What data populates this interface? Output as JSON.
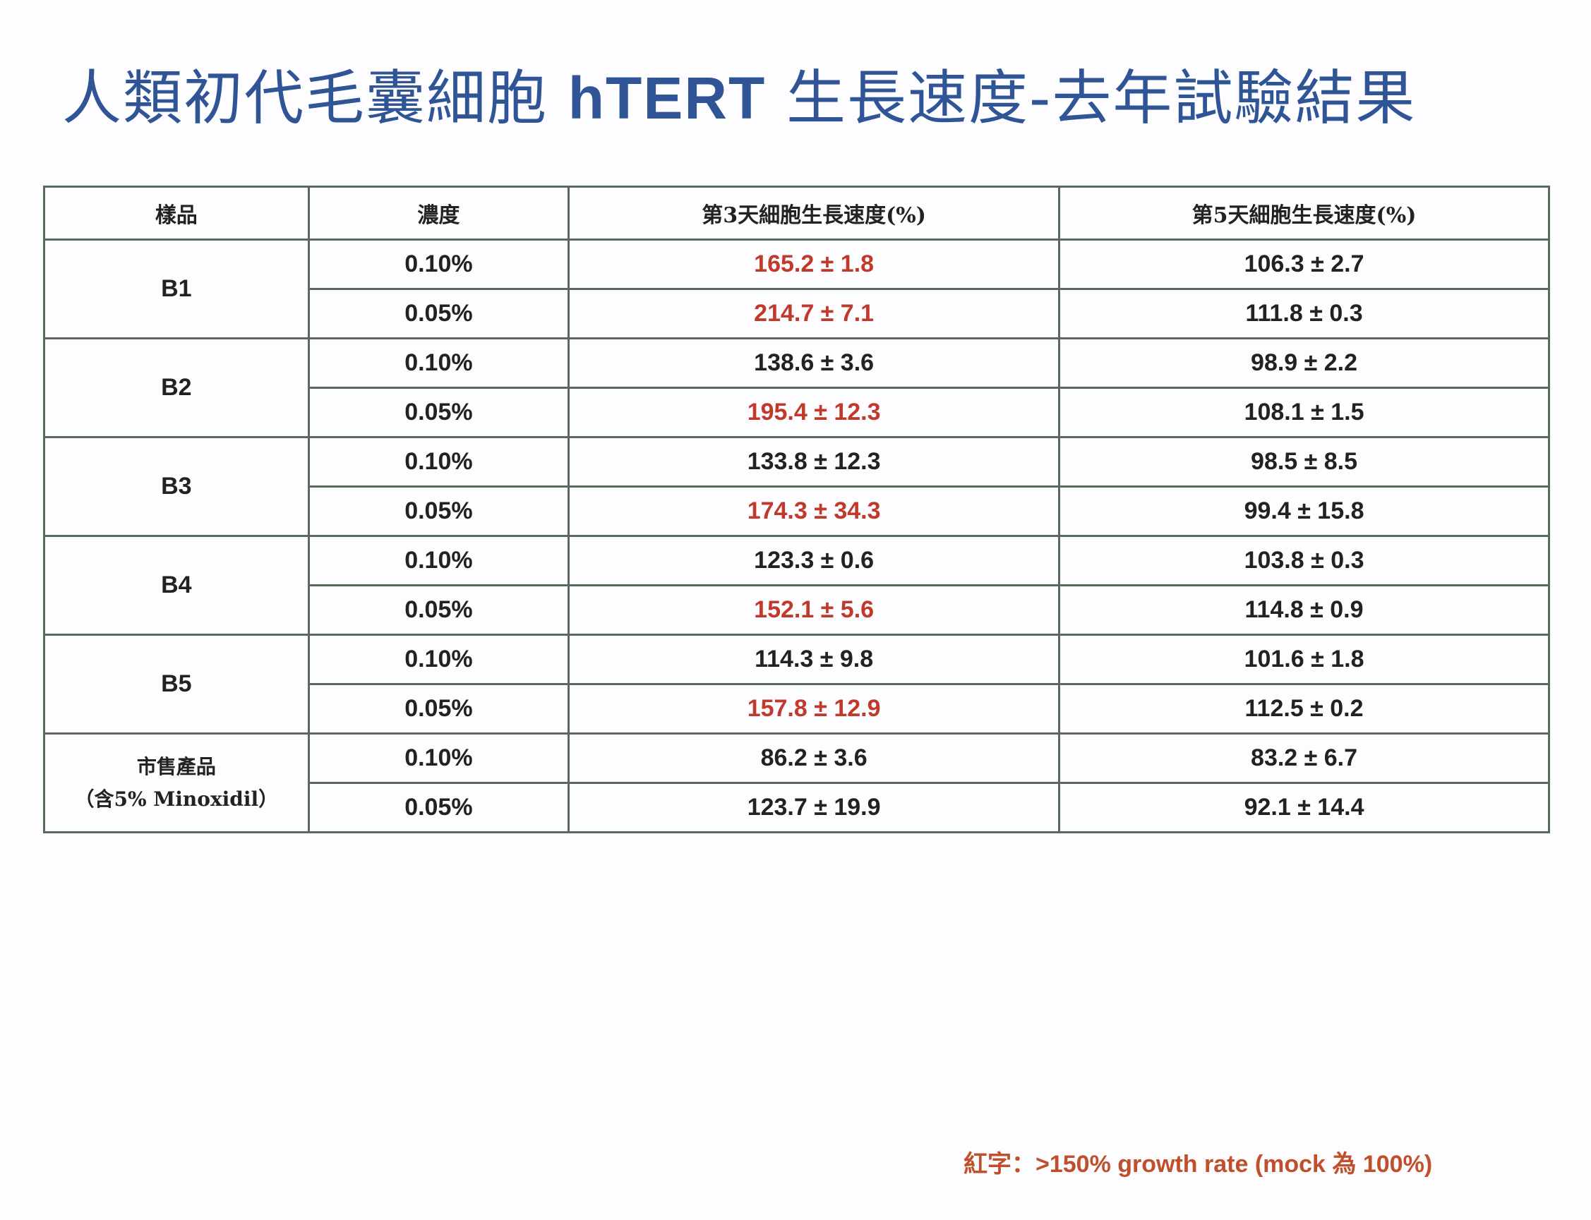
{
  "title": {
    "prefix": "人類初代毛囊細胞 ",
    "bold": "hTERT",
    "suffix": " 生長速度-去年試驗結果"
  },
  "table": {
    "headers": [
      "樣品",
      "濃度",
      "第3天細胞生長速度(%)",
      "第5天細胞生長速度(%)"
    ],
    "groups": [
      {
        "sample": "B1",
        "rows": [
          {
            "conc": "0.10%",
            "day3": "165.2 ± 1.8",
            "day3_red": true,
            "day5": "106.3 ± 2.7"
          },
          {
            "conc": "0.05%",
            "day3": "214.7 ± 7.1",
            "day3_red": true,
            "day5": "111.8 ± 0.3"
          }
        ]
      },
      {
        "sample": "B2",
        "rows": [
          {
            "conc": "0.10%",
            "day3": "138.6 ± 3.6",
            "day3_red": false,
            "day5": "98.9 ± 2.2"
          },
          {
            "conc": "0.05%",
            "day3": "195.4 ± 12.3",
            "day3_red": true,
            "day5": "108.1 ± 1.5"
          }
        ]
      },
      {
        "sample": "B3",
        "rows": [
          {
            "conc": "0.10%",
            "day3": "133.8 ± 12.3",
            "day3_red": false,
            "day5": "98.5 ± 8.5"
          },
          {
            "conc": "0.05%",
            "day3": "174.3 ± 34.3",
            "day3_red": true,
            "day5": "99.4 ± 15.8"
          }
        ]
      },
      {
        "sample": "B4",
        "rows": [
          {
            "conc": "0.10%",
            "day3": "123.3 ± 0.6",
            "day3_red": false,
            "day5": "103.8 ± 0.3"
          },
          {
            "conc": "0.05%",
            "day3": "152.1 ± 5.6",
            "day3_red": true,
            "day5": "114.8 ± 0.9"
          }
        ]
      },
      {
        "sample": "B5",
        "rows": [
          {
            "conc": "0.10%",
            "day3": "114.3 ± 9.8",
            "day3_red": false,
            "day5": "101.6 ± 1.8"
          },
          {
            "conc": "0.05%",
            "day3": "157.8 ± 12.9",
            "day3_red": true,
            "day5": "112.5 ± 0.2"
          }
        ]
      },
      {
        "sample": "市售產品",
        "sample_note": "（含5% Minoxidil）",
        "rows": [
          {
            "conc": "0.10%",
            "day3": "86.2 ± 3.6",
            "day3_red": false,
            "day5": "83.2 ± 6.7"
          },
          {
            "conc": "0.05%",
            "day3": "123.7 ± 19.9",
            "day3_red": false,
            "day5": "92.1 ± 14.4"
          }
        ]
      }
    ]
  },
  "footnote": "紅字：>150% growth rate (mock 為 100%)",
  "colors": {
    "title": "#2f5597",
    "highlight_red": "#c0392b",
    "text": "#222222"
  }
}
